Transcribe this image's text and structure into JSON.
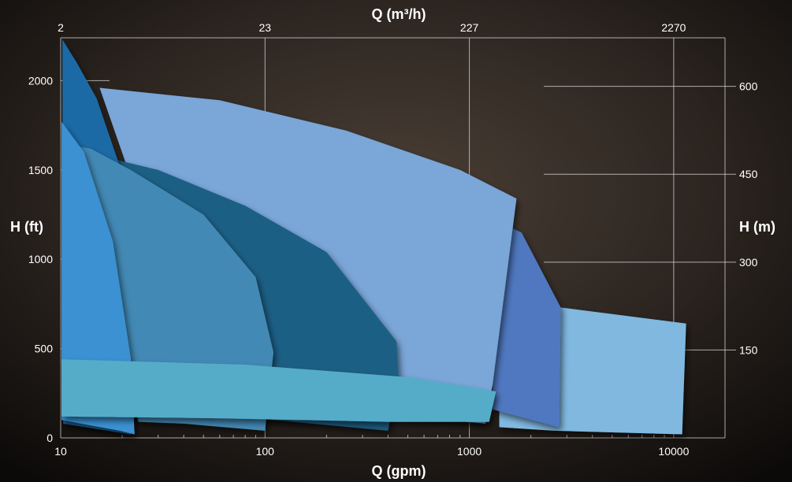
{
  "chart_data": {
    "type": "area",
    "xlabel_bottom": "Q (gpm)",
    "xlabel_top": "Q (m³/h)",
    "ylabel_left": "H (ft)",
    "ylabel_right": "H (m)",
    "x_scale": "log",
    "xlim": [
      10,
      13000
    ],
    "ylim": [
      0,
      2240
    ],
    "grid": true,
    "x_ticks_bottom": [
      {
        "v": 10,
        "label": "10"
      },
      {
        "v": 100,
        "label": "100"
      },
      {
        "v": 1000,
        "label": "1000"
      },
      {
        "v": 10000,
        "label": "10000"
      }
    ],
    "x_ticks_top": [
      {
        "v": 10,
        "label": "2"
      },
      {
        "v": 100,
        "label": "23"
      },
      {
        "v": 1000,
        "label": "227"
      },
      {
        "v": 10000,
        "label": "2270"
      }
    ],
    "y_ticks_left": [
      {
        "v": 0,
        "label": "0"
      },
      {
        "v": 500,
        "label": "500"
      },
      {
        "v": 1000,
        "label": "1000"
      },
      {
        "v": 1500,
        "label": "1500"
      },
      {
        "v": 2000,
        "label": "2000"
      }
    ],
    "y_ticks_right": [
      {
        "v": 492,
        "label": "150"
      },
      {
        "v": 984,
        "label": "300"
      },
      {
        "v": 1476,
        "label": "450"
      },
      {
        "v": 1968,
        "label": "600"
      }
    ],
    "regions": [
      {
        "color": "#80b8e0",
        "points": [
          [
            1400,
            730
          ],
          [
            2800,
            730
          ],
          [
            11500,
            640
          ],
          [
            11000,
            20
          ],
          [
            2600,
            40
          ],
          [
            1400,
            60
          ]
        ]
      },
      {
        "color": "#4f78c0",
        "points": [
          [
            1450,
            1200
          ],
          [
            1800,
            1150
          ],
          [
            2800,
            730
          ],
          [
            2750,
            60
          ],
          [
            1300,
            160
          ],
          [
            1300,
            360
          ]
        ]
      },
      {
        "color": "#7aa6d8",
        "points": [
          [
            15.5,
            1960
          ],
          [
            60,
            1890
          ],
          [
            250,
            1720
          ],
          [
            900,
            1500
          ],
          [
            1700,
            1340
          ],
          [
            1300,
            300
          ],
          [
            1200,
            80
          ],
          [
            400,
            130
          ],
          [
            21,
            170
          ],
          [
            22,
            1460
          ]
        ]
      },
      {
        "color": "#1f5f85",
        "points": [
          [
            13,
            1600
          ],
          [
            30,
            1500
          ],
          [
            80,
            1300
          ],
          [
            200,
            1040
          ],
          [
            440,
            540
          ],
          [
            450,
            350
          ],
          [
            400,
            40
          ],
          [
            110,
            100
          ],
          [
            32,
            130
          ]
        ]
      },
      {
        "color": "#1f6aa5",
        "points": [
          [
            10.2,
            2230
          ],
          [
            12,
            2100
          ],
          [
            15,
            1900
          ],
          [
            20,
            1480
          ],
          [
            24,
            1380
          ],
          [
            26,
            380
          ],
          [
            22,
            20
          ],
          [
            10.3,
            80
          ]
        ]
      },
      {
        "color": "#4289b5",
        "points": [
          [
            11,
            1640
          ],
          [
            14,
            1620
          ],
          [
            22,
            1500
          ],
          [
            50,
            1250
          ],
          [
            90,
            900
          ],
          [
            110,
            480
          ],
          [
            100,
            40
          ],
          [
            40,
            80
          ],
          [
            24,
            90
          ]
        ]
      },
      {
        "color": "#3a91d2",
        "points": [
          [
            10.1,
            1770
          ],
          [
            13,
            1600
          ],
          [
            18,
            1100
          ],
          [
            22,
            450
          ],
          [
            23,
            20
          ],
          [
            19.5,
            40
          ],
          [
            10.1,
            100
          ]
        ]
      },
      {
        "color": "#55acc8",
        "points": [
          [
            10.1,
            440
          ],
          [
            80,
            410
          ],
          [
            500,
            340
          ],
          [
            1350,
            260
          ],
          [
            1250,
            90
          ],
          [
            400,
            90
          ],
          [
            60,
            110
          ],
          [
            10.1,
            120
          ]
        ]
      }
    ]
  }
}
